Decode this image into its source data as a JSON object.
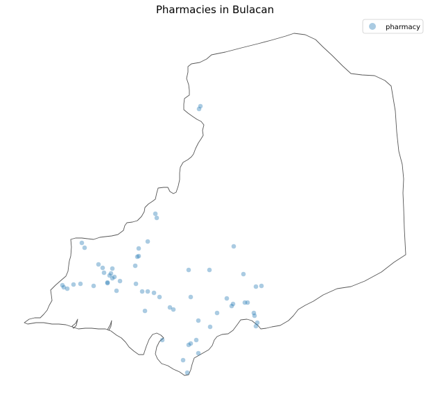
{
  "chart_data": {
    "type": "scatter",
    "title": "Pharmacies in Bulacan",
    "legend": {
      "position": "top-right",
      "label": "pharmacy"
    },
    "colors": {
      "point": "#1f77b4",
      "boundary": "#555555"
    },
    "point_alpha": 0.38,
    "series": [
      {
        "name": "pharmacy",
        "x": [
          289,
          287,
          224,
          226,
          118,
          122,
          213,
          200,
          200,
          198,
          195,
          142,
          148,
          162,
          150,
          160,
          158,
          162,
          165,
          173,
          155,
          155,
          168,
          135,
          92,
          90,
          97,
          106,
          116,
          196,
          205,
          213,
          222,
          230,
          245,
          250,
          209,
          272,
          302,
          275,
          337,
          351,
          369,
          377,
          327,
          336,
          334,
          353,
          357,
          366,
          367,
          313,
          286,
          371,
          369,
          303,
          283,
          275,
          272,
          234,
          264,
          270,
          286
        ],
        "y": [
          153,
          157,
          308,
          314,
          350,
          357,
          348,
          358,
          369,
          370,
          383,
          381,
          386,
          387,
          393,
          394,
          397,
          401,
          399,
          405,
          407,
          408,
          419,
          412,
          414,
          411,
          416,
          410,
          409,
          409,
          420,
          420,
          422,
          428,
          443,
          446,
          448,
          389,
          389,
          428,
          355,
          395,
          413,
          412,
          430,
          438,
          441,
          436,
          436,
          451,
          455,
          451,
          462,
          465,
          470,
          471,
          490,
          495,
          497,
          490,
          519,
          537,
          509
        ]
      }
    ]
  }
}
